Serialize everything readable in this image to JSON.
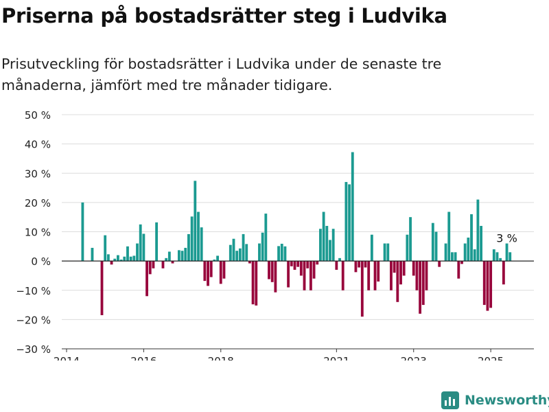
{
  "title": "Priserna på bostadsrätter steg i Ludvika",
  "subtitle": "Prisutveckling för bostadsrätter i Ludvika under de senaste tre månaderna, jämfört med tre månader tidigare.",
  "brand": {
    "name": "Newsworthy",
    "icon": "newsworthy-logo-icon"
  },
  "colors": {
    "positive": "#1b9a91",
    "negative": "#98063c",
    "grid": "#dcdcdc",
    "axis": "#333333",
    "brand": "#2a8c83"
  },
  "chart_data": {
    "type": "bar",
    "ylim": [
      -30,
      50
    ],
    "y_ticks": [
      -30,
      -20,
      -10,
      0,
      10,
      20,
      30,
      40,
      50
    ],
    "y_tick_labels": [
      "−30 %",
      "−20 %",
      "−10 %",
      "0 %",
      "10 %",
      "20 %",
      "30 %",
      "40 %",
      "50 %"
    ],
    "x_ticks": [
      2014,
      2016,
      2018,
      2021,
      2023,
      2025
    ],
    "x_range": [
      "2014-01",
      "2026-02"
    ],
    "grid": true,
    "annotation": {
      "label": "3 %",
      "date": "2025-06",
      "value": 3
    },
    "bars": [
      {
        "x": "2014-06",
        "y": 20
      },
      {
        "x": "2014-09",
        "y": 4.5
      },
      {
        "x": "2014-12",
        "y": -18.5
      },
      {
        "x": "2015-01",
        "y": 8.8
      },
      {
        "x": "2015-02",
        "y": 2.3
      },
      {
        "x": "2015-03",
        "y": -1.2
      },
      {
        "x": "2015-04",
        "y": 0.8
      },
      {
        "x": "2015-05",
        "y": 2
      },
      {
        "x": "2015-06",
        "y": 0.5
      },
      {
        "x": "2015-07",
        "y": 1.5
      },
      {
        "x": "2015-08",
        "y": 5
      },
      {
        "x": "2015-09",
        "y": 1.5
      },
      {
        "x": "2015-10",
        "y": 1.8
      },
      {
        "x": "2015-11",
        "y": 6
      },
      {
        "x": "2015-12",
        "y": 12.5
      },
      {
        "x": "2016-01",
        "y": 9.3
      },
      {
        "x": "2016-02",
        "y": -12
      },
      {
        "x": "2016-03",
        "y": -4.5
      },
      {
        "x": "2016-04",
        "y": -2.5
      },
      {
        "x": "2016-05",
        "y": 13.2
      },
      {
        "x": "2016-07",
        "y": -2.5
      },
      {
        "x": "2016-08",
        "y": 1
      },
      {
        "x": "2016-09",
        "y": 3.2
      },
      {
        "x": "2016-10",
        "y": -0.8
      },
      {
        "x": "2016-12",
        "y": 3.7
      },
      {
        "x": "2017-01",
        "y": 3.5
      },
      {
        "x": "2017-02",
        "y": 4.5
      },
      {
        "x": "2017-03",
        "y": 9.2
      },
      {
        "x": "2017-04",
        "y": 15.2
      },
      {
        "x": "2017-05",
        "y": 27.4
      },
      {
        "x": "2017-06",
        "y": 16.8
      },
      {
        "x": "2017-07",
        "y": 11.5
      },
      {
        "x": "2017-08",
        "y": -6.8
      },
      {
        "x": "2017-09",
        "y": -8.5
      },
      {
        "x": "2017-10",
        "y": -5.5
      },
      {
        "x": "2017-11",
        "y": 0.5
      },
      {
        "x": "2017-12",
        "y": 1.8
      },
      {
        "x": "2018-01",
        "y": -7.8
      },
      {
        "x": "2018-02",
        "y": -6
      },
      {
        "x": "2018-04",
        "y": 5.5
      },
      {
        "x": "2018-05",
        "y": 7.6
      },
      {
        "x": "2018-06",
        "y": 3.5
      },
      {
        "x": "2018-07",
        "y": 4.3
      },
      {
        "x": "2018-08",
        "y": 9.2
      },
      {
        "x": "2018-09",
        "y": 5.8
      },
      {
        "x": "2018-10",
        "y": -0.8
      },
      {
        "x": "2018-11",
        "y": -14.8
      },
      {
        "x": "2018-12",
        "y": -15.2
      },
      {
        "x": "2019-01",
        "y": 6
      },
      {
        "x": "2019-02",
        "y": 9.7
      },
      {
        "x": "2019-03",
        "y": 16.2
      },
      {
        "x": "2019-04",
        "y": -6.2
      },
      {
        "x": "2019-05",
        "y": -7.2
      },
      {
        "x": "2019-06",
        "y": -10.7
      },
      {
        "x": "2019-07",
        "y": 5.1
      },
      {
        "x": "2019-08",
        "y": 5.9
      },
      {
        "x": "2019-09",
        "y": 5
      },
      {
        "x": "2019-10",
        "y": -9
      },
      {
        "x": "2019-11",
        "y": -1.8
      },
      {
        "x": "2019-12",
        "y": -3
      },
      {
        "x": "2020-01",
        "y": -2
      },
      {
        "x": "2020-02",
        "y": -5
      },
      {
        "x": "2020-03",
        "y": -10
      },
      {
        "x": "2020-04",
        "y": -2.5
      },
      {
        "x": "2020-05",
        "y": -10
      },
      {
        "x": "2020-06",
        "y": -6
      },
      {
        "x": "2020-07",
        "y": -1.2
      },
      {
        "x": "2020-08",
        "y": 11
      },
      {
        "x": "2020-09",
        "y": 16.8
      },
      {
        "x": "2020-10",
        "y": 12
      },
      {
        "x": "2020-11",
        "y": 7.2
      },
      {
        "x": "2020-12",
        "y": 11
      },
      {
        "x": "2021-01",
        "y": -3
      },
      {
        "x": "2021-02",
        "y": 1
      },
      {
        "x": "2021-03",
        "y": -10
      },
      {
        "x": "2021-04",
        "y": 27
      },
      {
        "x": "2021-05",
        "y": 26.2
      },
      {
        "x": "2021-06",
        "y": 37.2
      },
      {
        "x": "2021-07",
        "y": -3.8
      },
      {
        "x": "2021-08",
        "y": -2.2
      },
      {
        "x": "2021-09",
        "y": -19
      },
      {
        "x": "2021-10",
        "y": -2.2
      },
      {
        "x": "2021-11",
        "y": -10
      },
      {
        "x": "2021-12",
        "y": 9
      },
      {
        "x": "2022-01",
        "y": -10
      },
      {
        "x": "2022-02",
        "y": -7
      },
      {
        "x": "2022-04",
        "y": 6
      },
      {
        "x": "2022-05",
        "y": 6
      },
      {
        "x": "2022-06",
        "y": -10
      },
      {
        "x": "2022-07",
        "y": -4
      },
      {
        "x": "2022-08",
        "y": -14
      },
      {
        "x": "2022-09",
        "y": -8
      },
      {
        "x": "2022-10",
        "y": -5
      },
      {
        "x": "2022-11",
        "y": 9
      },
      {
        "x": "2022-12",
        "y": 15
      },
      {
        "x": "2023-01",
        "y": -5
      },
      {
        "x": "2023-02",
        "y": -10
      },
      {
        "x": "2023-03",
        "y": -18
      },
      {
        "x": "2023-04",
        "y": -15
      },
      {
        "x": "2023-05",
        "y": -10
      },
      {
        "x": "2023-07",
        "y": 13
      },
      {
        "x": "2023-08",
        "y": 10
      },
      {
        "x": "2023-09",
        "y": -2
      },
      {
        "x": "2023-11",
        "y": 6
      },
      {
        "x": "2023-12",
        "y": 16.8
      },
      {
        "x": "2024-01",
        "y": 3
      },
      {
        "x": "2024-02",
        "y": 3
      },
      {
        "x": "2024-03",
        "y": -6
      },
      {
        "x": "2024-04",
        "y": -1
      },
      {
        "x": "2024-05",
        "y": 6
      },
      {
        "x": "2024-06",
        "y": 8
      },
      {
        "x": "2024-07",
        "y": 16
      },
      {
        "x": "2024-08",
        "y": 4
      },
      {
        "x": "2024-09",
        "y": 21
      },
      {
        "x": "2024-10",
        "y": 12
      },
      {
        "x": "2024-11",
        "y": -15
      },
      {
        "x": "2024-12",
        "y": -17
      },
      {
        "x": "2025-01",
        "y": -16
      },
      {
        "x": "2025-02",
        "y": 4
      },
      {
        "x": "2025-03",
        "y": 3
      },
      {
        "x": "2025-04",
        "y": 1
      },
      {
        "x": "2025-05",
        "y": -8
      },
      {
        "x": "2025-06",
        "y": 6
      },
      {
        "x": "2025-07",
        "y": 3
      }
    ]
  }
}
